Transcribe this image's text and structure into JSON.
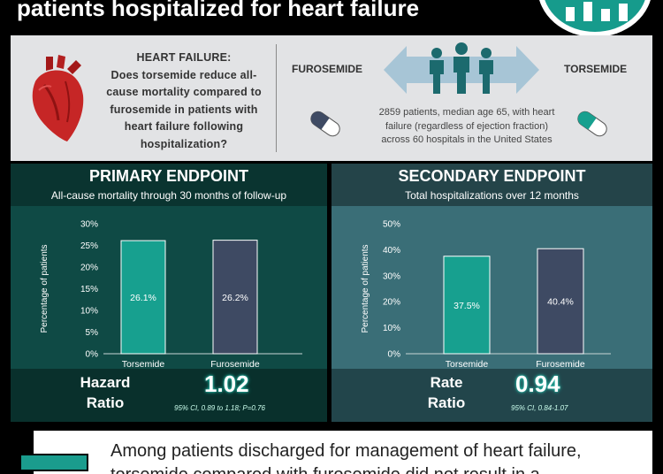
{
  "header": {
    "title": "patients hospitalized for heart failure"
  },
  "study": {
    "question_title": "HEART FAILURE:",
    "question": "Does torsemide reduce all-cause mortality compared to furosemide in patients with heart failure following hospitalization?",
    "drug_a": "FUROSEMIDE",
    "drug_b": "TORSEMIDE",
    "population": "2859 patients, median age 65, with heart failure (regardless of ejection fraction) across 60 hospitals in the United States"
  },
  "primary": {
    "title": "PRIMARY ENDPOINT",
    "subtitle": "All-cause mortality through 30 months of follow-up",
    "stat_label_line1": "Hazard",
    "stat_label_line2": "Ratio",
    "stat_value": "1.02",
    "stat_ci": "95% CI, 0.89 to 1.18; P=0.76"
  },
  "secondary": {
    "title": "SECONDARY ENDPOINT",
    "subtitle": "Total hospitalizations over 12 months",
    "stat_label_line1": "Rate",
    "stat_label_line2": "Ratio",
    "stat_value": "0.94",
    "stat_ci": "95% CI, 0.84-1.07"
  },
  "chart_data": [
    {
      "type": "bar",
      "categories": [
        "Torsemide",
        "Furosemide"
      ],
      "values": [
        26.1,
        26.2
      ],
      "value_labels": [
        "26.1%",
        "26.2%"
      ],
      "ylabel": "Percentage of patients",
      "ylim": [
        0,
        30
      ],
      "yticks": [
        "0%",
        "5%",
        "10%",
        "15%",
        "20%",
        "25%",
        "30%"
      ],
      "colors": [
        "#17a08f",
        "#3e4a63"
      ]
    },
    {
      "type": "bar",
      "categories": [
        "Torsemide",
        "Furosemide"
      ],
      "values": [
        37.5,
        40.4
      ],
      "value_labels": [
        "37.5%",
        "40.4%"
      ],
      "ylabel": "Percentage of patients",
      "ylim": [
        0,
        50
      ],
      "yticks": [
        "0%",
        "10%",
        "20%",
        "30%",
        "40%",
        "50%"
      ],
      "colors": [
        "#17a08f",
        "#3e4a63"
      ]
    }
  ],
  "footer": {
    "conclusion": "Among patients discharged for management of heart failure, torsemide compared with furosemide did not result in a"
  }
}
